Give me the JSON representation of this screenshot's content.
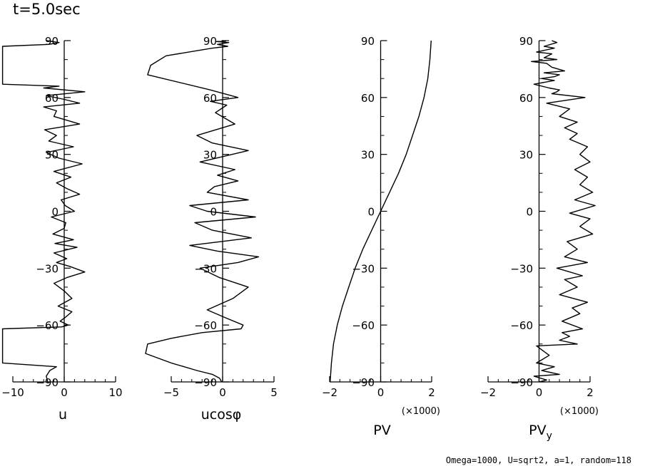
{
  "title": "t=5.0sec",
  "footer": "Omega=1000, U=sqrt2, a=1, random=118",
  "chart_data": [
    {
      "id": "u",
      "type": "line",
      "xlabel": "u",
      "xlim": [
        -10,
        10
      ],
      "xticks": [
        -10,
        0,
        10
      ],
      "xtick_labels": [
        "−10",
        "0",
        "10"
      ],
      "ylim": [
        -90,
        90
      ],
      "yticks": [
        90,
        60,
        30,
        0,
        -30,
        -60,
        -90
      ],
      "ytick_labels": [
        "90",
        "60",
        "30",
        "0",
        "−30",
        "−60",
        "−90"
      ],
      "x": [
        -3.2,
        -3.5,
        -2.8,
        -1.5,
        -12,
        -12,
        -12,
        -12,
        -12,
        -12,
        -0.5,
        0.8,
        -0.8,
        0.2,
        1.5,
        -1.2,
        1.5,
        0,
        -2,
        0.5,
        4,
        1,
        -1.5,
        0.5,
        -2,
        2.5,
        -1.8,
        1.8,
        -2.2,
        0,
        0.3,
        -2.5,
        2,
        0.2,
        -0.6,
        3,
        0.5,
        -1.5,
        1.3,
        -2,
        3.5,
        -1,
        -3.5,
        1.8,
        -3,
        -1.5,
        -3.8,
        3,
        -2,
        -1.5,
        -4,
        3,
        0,
        -3.5,
        4,
        -4,
        -1,
        -12,
        -12,
        -12,
        -12,
        -12,
        -12,
        -12,
        -3,
        -1,
        -3.5
      ],
      "y": [
        -90,
        -87,
        -84,
        -82,
        -80,
        -76,
        -72,
        -68,
        -64,
        -62,
        -61,
        -60,
        -58,
        -56,
        -53,
        -50,
        -46,
        -42,
        -38,
        -35,
        -32,
        -29,
        -27,
        -25,
        -22,
        -19,
        -17,
        -15,
        -12,
        -9,
        -6,
        -3,
        0,
        3,
        6,
        9,
        12,
        15,
        18,
        21,
        25,
        28,
        31,
        34,
        37,
        40,
        43,
        46,
        50,
        53,
        55,
        57,
        59,
        61,
        63,
        65,
        66,
        67,
        70,
        74,
        78,
        82,
        85,
        87,
        88,
        89,
        90
      ]
    },
    {
      "id": "ucos",
      "type": "line",
      "xlabel": "ucosφ",
      "xlim": [
        -5,
        5
      ],
      "xticks": [
        -5,
        0,
        5
      ],
      "xtick_labels": [
        "−5",
        "0",
        "5"
      ],
      "ylim": [
        -90,
        90
      ],
      "yticks": [
        90,
        60,
        30,
        0,
        -30,
        -60,
        -90
      ],
      "ytick_labels": [
        "90",
        "60",
        "30",
        "0",
        "−30",
        "−60",
        "−90"
      ],
      "x": [
        -0.1,
        -0.3,
        -1,
        -2.5,
        -5,
        -7.5,
        -7.3,
        -5,
        -2,
        1.8,
        2,
        0.2,
        -1.5,
        1,
        2.5,
        -0.3,
        -2.2,
        1.5,
        3.5,
        -0.5,
        -3.2,
        2.8,
        -1,
        -2.7,
        3.2,
        -1.5,
        -3.2,
        2.5,
        -1.5,
        -0.8,
        1.5,
        -0.5,
        1.2,
        -2.2,
        2.5,
        -1,
        -2.5,
        1.2,
        -0.7,
        0.4,
        -1.2,
        1.5,
        -1.2,
        -7.3,
        -7,
        -5.5,
        -1,
        0.5,
        -0.5,
        0.6,
        -0.6,
        0.3,
        -0.1
      ],
      "y": [
        -90,
        -88,
        -86,
        -84,
        -80,
        -75,
        -70,
        -67,
        -64,
        -62,
        -60,
        -56,
        -52,
        -46,
        -40,
        -35,
        -30,
        -27,
        -24,
        -21,
        -18,
        -14,
        -10,
        -6,
        -3,
        0,
        3,
        6,
        10,
        13,
        16,
        19,
        22,
        26,
        32,
        36,
        40,
        46,
        52,
        56,
        58,
        60,
        64,
        72,
        77,
        82,
        86,
        87,
        88,
        89,
        89.5,
        89.8,
        90
      ]
    },
    {
      "id": "pv",
      "type": "line",
      "xlabel": "PV",
      "scale_note": "(×1000)",
      "xlim": [
        -2,
        2
      ],
      "xticks": [
        -2,
        0,
        2
      ],
      "xtick_labels": [
        "−2",
        "0",
        "2"
      ],
      "ylim": [
        -90,
        90
      ],
      "yticks": [
        90,
        60,
        30,
        0,
        -30,
        -60,
        -90
      ],
      "ytick_labels": [
        "90",
        "60",
        "30",
        "0",
        "−30",
        "−60",
        "−90"
      ],
      "x": [
        -1.98,
        -1.93,
        -1.85,
        -1.7,
        -1.5,
        -1.25,
        -1,
        -0.7,
        -0.35,
        0,
        0.35,
        0.7,
        1,
        1.25,
        1.5,
        1.7,
        1.85,
        1.93,
        1.98
      ],
      "y": [
        -90,
        -80,
        -70,
        -60,
        -50,
        -40,
        -30,
        -20,
        -10,
        0,
        10,
        20,
        30,
        40,
        50,
        60,
        70,
        80,
        90
      ]
    },
    {
      "id": "pvy",
      "type": "line",
      "xlabel": "PV",
      "xlabel_sub": "y",
      "scale_note": "(×1000)",
      "xlim": [
        -2,
        2
      ],
      "xticks": [
        -2,
        0,
        2
      ],
      "xtick_labels": [
        "−2",
        "0",
        "2"
      ],
      "ylim": [
        -90,
        90
      ],
      "yticks": [
        90,
        60,
        30,
        0,
        -30,
        -60,
        -90
      ],
      "ytick_labels": [
        "90",
        "60",
        "30",
        "0",
        "−30",
        "−60",
        "−90"
      ],
      "x": [
        0,
        0.3,
        -0.2,
        0.8,
        0.1,
        0.6,
        -0.1,
        0.4,
        0.1,
        -0.1,
        1.5,
        0.8,
        1.2,
        0.9,
        1.7,
        0.9,
        1.6,
        1.3,
        1.9,
        0.8,
        1.5,
        1,
        1.7,
        0.7,
        1.9,
        1,
        1.5,
        1.1,
        2.1,
        1.6,
        2,
        1.2,
        2.2,
        1.4,
        2.1,
        1.6,
        1.9,
        1.4,
        2,
        1.6,
        1.9,
        1.2,
        1.5,
        1,
        1.5,
        0.8,
        1.2,
        0.3,
        1.8,
        0.5,
        0.7,
        0.8,
        0.4,
        -0.2,
        0.6,
        0.1,
        0.6,
        0.8,
        0.2,
        1,
        0.5,
        0.3,
        -0.3,
        0.7,
        0.2,
        0.5,
        -0.1,
        0.6,
        0.2,
        0.7,
        0.5
      ],
      "y": [
        -90,
        -89,
        -87,
        -86,
        -84,
        -82,
        -80,
        -76,
        -73,
        -71,
        -70,
        -68,
        -66,
        -64,
        -62,
        -58,
        -54,
        -51,
        -48,
        -44,
        -40,
        -36,
        -34,
        -30,
        -27,
        -24,
        -20,
        -16,
        -12,
        -8,
        -4,
        -1,
        3,
        6,
        10,
        14,
        18,
        22,
        26,
        30,
        34,
        38,
        41,
        44,
        47,
        50,
        54,
        57,
        60,
        62,
        63,
        64,
        65,
        67,
        69,
        70,
        71,
        72,
        73,
        74,
        76,
        78,
        79,
        80,
        81,
        83,
        84,
        86,
        87,
        89,
        90
      ]
    }
  ]
}
